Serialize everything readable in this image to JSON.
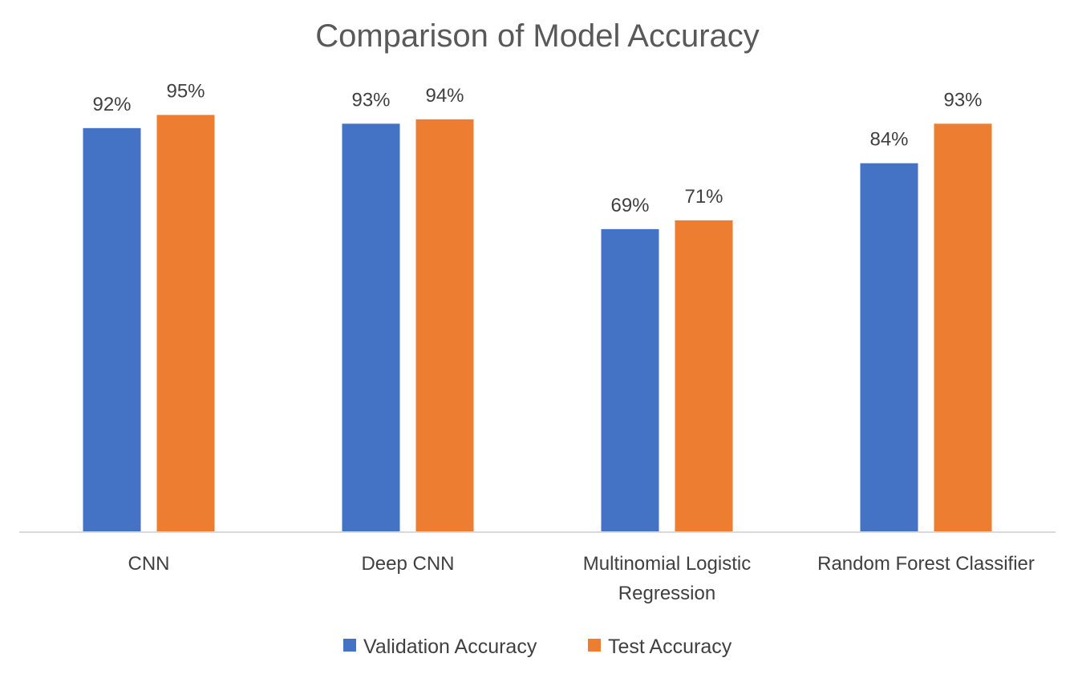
{
  "chart_data": {
    "type": "bar",
    "title": "Comparison of Model Accuracy",
    "categories": [
      [
        "CNN"
      ],
      [
        "Deep CNN"
      ],
      [
        "Multinomial Logistic",
        "Regression"
      ],
      [
        "Random Forest Classifier"
      ]
    ],
    "category_names": [
      "CNN",
      "Deep CNN",
      "Multinomial Logistic Regression",
      "Random Forest Classifier"
    ],
    "series": [
      {
        "name": "Validation Accuracy",
        "color": "#4472C4",
        "values": [
          92,
          93,
          69,
          84
        ],
        "labels": [
          "92%",
          "93%",
          "69%",
          "84%"
        ]
      },
      {
        "name": "Test Accuracy",
        "color": "#ED7D31",
        "values": [
          95,
          94,
          71,
          93
        ],
        "labels": [
          "95%",
          "94%",
          "71%",
          "93%"
        ]
      }
    ],
    "ylim": [
      0,
      100
    ],
    "value_unit": "%",
    "grid": false,
    "legend_position": "bottom",
    "xlabel": "",
    "ylabel": ""
  }
}
